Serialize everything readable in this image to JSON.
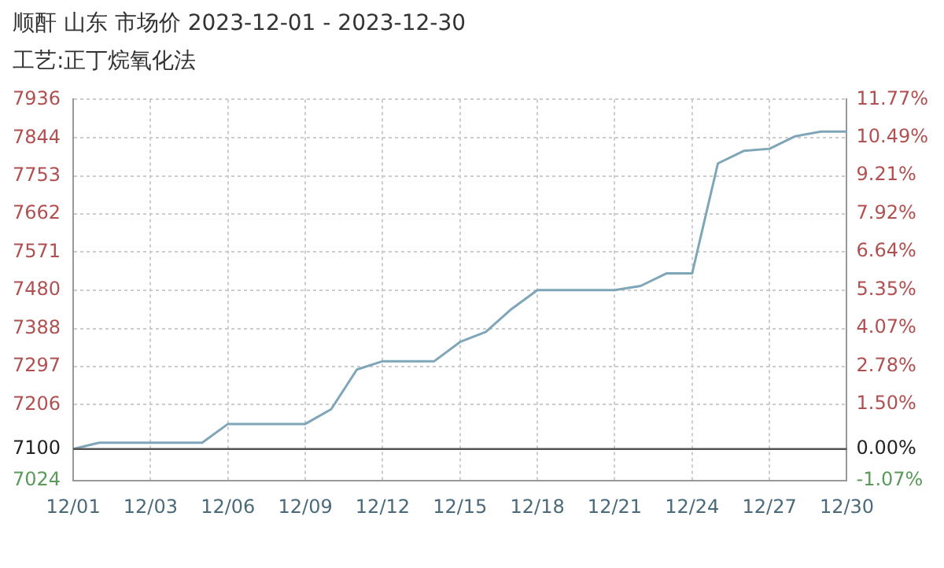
{
  "chart_data": {
    "type": "line",
    "title": "顺酐 山东 市场价 2023-12-01 - 2023-12-30",
    "subtitle": "工艺:正丁烷氧化法",
    "categories": [
      "12/01",
      null,
      null,
      "12/03",
      null,
      null,
      "12/06",
      null,
      null,
      "12/09",
      null,
      null,
      "12/12",
      null,
      null,
      "12/15",
      null,
      null,
      "12/18",
      null,
      null,
      "12/21",
      null,
      null,
      "12/24",
      null,
      null,
      "12/27",
      null,
      null,
      "12/30"
    ],
    "series": [
      {
        "color": "#7fa6b8",
        "values": [
          7100,
          7115,
          7115,
          7115,
          7115,
          7115,
          7160,
          7160,
          7160,
          7160,
          7195,
          7290,
          7310,
          7310,
          7310,
          7356,
          7380,
          7435,
          7480,
          7480,
          7480,
          7480,
          7490,
          7520,
          7520,
          7783,
          7813,
          7818,
          7848,
          7859,
          7859
        ]
      }
    ],
    "ylim": [
      7024,
      7936
    ],
    "yticks": [
      7024,
      7100,
      7206,
      7297,
      7388,
      7480,
      7571,
      7662,
      7753,
      7844,
      7936
    ],
    "y2lim": [
      -1.07,
      11.77
    ],
    "y2ticks": [
      {
        "value": -1.07,
        "label": "-1.07%"
      },
      {
        "value": 0,
        "label": "0.00%"
      },
      {
        "value": 1.5,
        "label": "1.50%"
      },
      {
        "value": 2.78,
        "label": "2.78%"
      },
      {
        "value": 4.07,
        "label": "4.07%"
      },
      {
        "value": 5.35,
        "label": "5.35%"
      },
      {
        "value": 6.64,
        "label": "6.64%"
      },
      {
        "value": 7.92,
        "label": "7.92%"
      },
      {
        "value": 9.21,
        "label": "9.21%"
      },
      {
        "value": 10.49,
        "label": "10.49%"
      },
      {
        "value": 11.77,
        "label": "11.77%"
      }
    ],
    "ref_lines": [
      {
        "axis": "y",
        "value": 7100,
        "color": "#555555"
      }
    ],
    "grid": true,
    "legend": false,
    "marker": "none",
    "line_style": "solid"
  }
}
